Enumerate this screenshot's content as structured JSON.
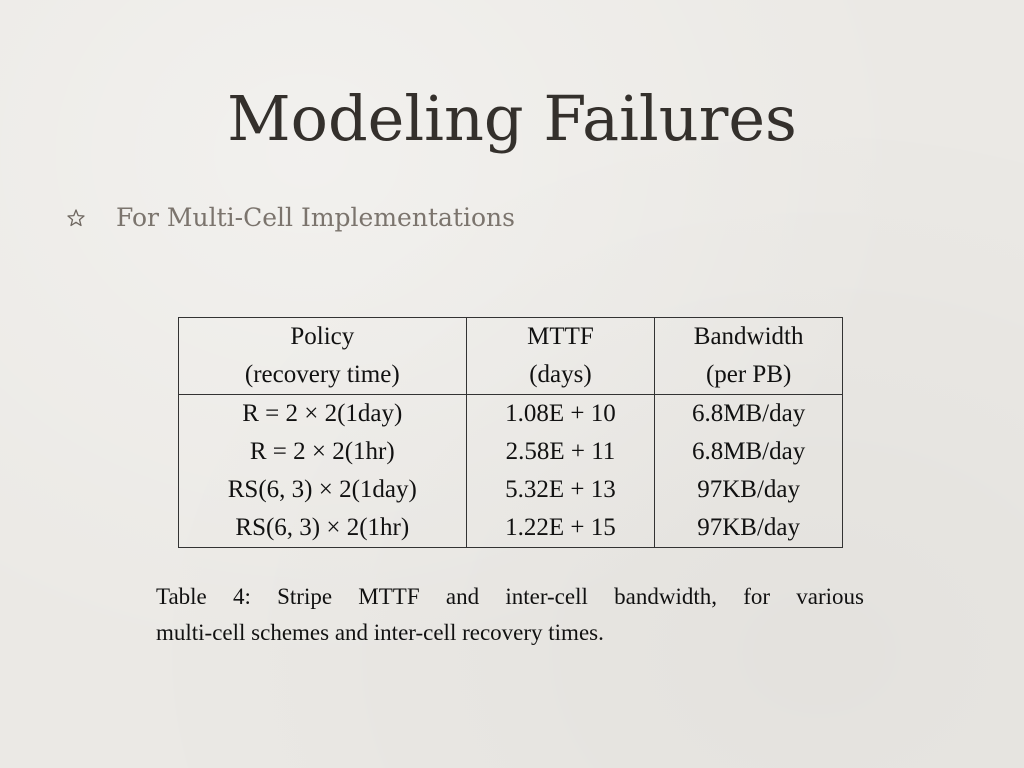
{
  "slide": {
    "title": "Modeling Failures",
    "bullet": {
      "icon": "star-bullet-icon",
      "text": "For Multi-Cell Implementations"
    },
    "table": {
      "headers": [
        [
          "Policy",
          "(recovery time)"
        ],
        [
          "MTTF",
          "(days)"
        ],
        [
          "Bandwidth",
          "(per PB)"
        ]
      ],
      "rows": [
        [
          "R = 2 × 2(1day)",
          "1.08E + 10",
          "6.8MB/day"
        ],
        [
          "R = 2 × 2(1hr)",
          "2.58E + 11",
          "6.8MB/day"
        ],
        [
          "RS(6, 3) × 2(1day)",
          "5.32E + 13",
          "97KB/day"
        ],
        [
          "RS(6, 3) × 2(1hr)",
          "1.22E + 15",
          "97KB/day"
        ]
      ]
    },
    "caption": {
      "line1": "Table 4:  Stripe MTTF and inter-cell bandwidth, for various",
      "line2": "multi-cell schemes and inter-cell recovery times."
    },
    "colors": {
      "background": "#ebe9e5",
      "title": "#34302c",
      "bullet_text": "#7b746d"
    }
  }
}
